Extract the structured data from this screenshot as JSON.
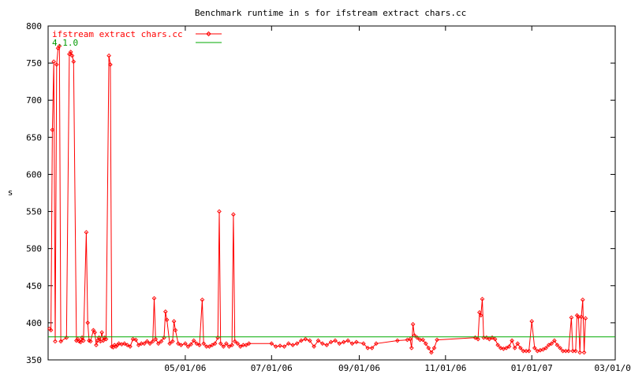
{
  "chart_data": {
    "type": "line",
    "title": "Benchmark runtime in s for ifstream extract chars.cc",
    "ylabel": "s",
    "xlabel": "",
    "ylim": [
      350,
      800
    ],
    "xlim": [
      "2006-01-24",
      "2007-03-01"
    ],
    "y_ticks": [
      350,
      400,
      450,
      500,
      550,
      600,
      650,
      700,
      750,
      800
    ],
    "x_ticks": [
      {
        "date": "2006-05-01",
        "label": "05/01/06"
      },
      {
        "date": "2006-07-01",
        "label": "07/01/06"
      },
      {
        "date": "2006-09-01",
        "label": "09/01/06"
      },
      {
        "date": "2006-11-01",
        "label": "11/01/06"
      },
      {
        "date": "2007-01-01",
        "label": "01/01/07"
      },
      {
        "date": "2007-03-01",
        "label": "03/01/07"
      }
    ],
    "legend_position": "top-left",
    "series": [
      {
        "name": "ifstream extract chars.cc",
        "color": "#ff0000",
        "marker": "diamond",
        "points": [
          [
            "2006-01-25",
            392
          ],
          [
            "2006-01-26",
            390
          ],
          [
            "2006-01-27",
            660
          ],
          [
            "2006-01-28",
            752
          ],
          [
            "2006-01-29",
            375
          ],
          [
            "2006-01-30",
            748
          ],
          [
            "2006-01-31",
            770
          ],
          [
            "2006-02-01",
            773
          ],
          [
            "2006-02-02",
            375
          ],
          [
            "2006-02-06",
            380
          ],
          [
            "2006-02-08",
            762
          ],
          [
            "2006-02-09",
            765
          ],
          [
            "2006-02-10",
            760
          ],
          [
            "2006-02-11",
            752
          ],
          [
            "2006-02-13",
            376
          ],
          [
            "2006-02-14",
            378
          ],
          [
            "2006-02-15",
            375
          ],
          [
            "2006-02-16",
            374
          ],
          [
            "2006-02-17",
            380
          ],
          [
            "2006-02-18",
            376
          ],
          [
            "2006-02-20",
            522
          ],
          [
            "2006-02-21",
            400
          ],
          [
            "2006-02-22",
            376
          ],
          [
            "2006-02-23",
            375
          ],
          [
            "2006-02-25",
            390
          ],
          [
            "2006-02-26",
            387
          ],
          [
            "2006-02-27",
            370
          ],
          [
            "2006-02-28",
            376
          ],
          [
            "2006-03-01",
            380
          ],
          [
            "2006-03-02",
            375
          ],
          [
            "2006-03-03",
            387
          ],
          [
            "2006-03-04",
            376
          ],
          [
            "2006-03-05",
            380
          ],
          [
            "2006-03-06",
            378
          ],
          [
            "2006-03-08",
            760
          ],
          [
            "2006-03-09",
            748
          ],
          [
            "2006-03-10",
            368
          ],
          [
            "2006-03-11",
            367
          ],
          [
            "2006-03-12",
            370
          ],
          [
            "2006-03-13",
            368
          ],
          [
            "2006-03-14",
            370
          ],
          [
            "2006-03-15",
            372
          ],
          [
            "2006-03-17",
            371
          ],
          [
            "2006-03-19",
            372
          ],
          [
            "2006-03-21",
            370
          ],
          [
            "2006-03-23",
            368
          ],
          [
            "2006-03-25",
            378
          ],
          [
            "2006-03-27",
            377
          ],
          [
            "2006-03-29",
            370
          ],
          [
            "2006-03-31",
            372
          ],
          [
            "2006-04-02",
            372
          ],
          [
            "2006-04-04",
            375
          ],
          [
            "2006-04-06",
            372
          ],
          [
            "2006-04-08",
            375
          ],
          [
            "2006-04-09",
            433
          ],
          [
            "2006-04-10",
            378
          ],
          [
            "2006-04-12",
            372
          ],
          [
            "2006-04-14",
            375
          ],
          [
            "2006-04-16",
            380
          ],
          [
            "2006-04-17",
            415
          ],
          [
            "2006-04-18",
            404
          ],
          [
            "2006-04-20",
            372
          ],
          [
            "2006-04-22",
            375
          ],
          [
            "2006-04-23",
            402
          ],
          [
            "2006-04-24",
            390
          ],
          [
            "2006-04-26",
            372
          ],
          [
            "2006-04-28",
            370
          ],
          [
            "2006-05-01",
            372
          ],
          [
            "2006-05-03",
            368
          ],
          [
            "2006-05-05",
            371
          ],
          [
            "2006-05-07",
            376
          ],
          [
            "2006-05-09",
            372
          ],
          [
            "2006-05-11",
            370
          ],
          [
            "2006-05-13",
            431
          ],
          [
            "2006-05-14",
            372
          ],
          [
            "2006-05-16",
            368
          ],
          [
            "2006-05-18",
            368
          ],
          [
            "2006-05-20",
            370
          ],
          [
            "2006-05-22",
            372
          ],
          [
            "2006-05-24",
            380
          ],
          [
            "2006-05-25",
            550
          ],
          [
            "2006-05-26",
            372
          ],
          [
            "2006-05-28",
            368
          ],
          [
            "2006-05-30",
            372
          ],
          [
            "2006-06-01",
            368
          ],
          [
            "2006-06-03",
            370
          ],
          [
            "2006-06-04",
            546
          ],
          [
            "2006-06-05",
            375
          ],
          [
            "2006-06-07",
            372
          ],
          [
            "2006-06-09",
            368
          ],
          [
            "2006-06-11",
            370
          ],
          [
            "2006-06-13",
            370
          ],
          [
            "2006-06-15",
            372
          ],
          [
            "2006-07-01",
            372
          ],
          [
            "2006-07-04",
            368
          ],
          [
            "2006-07-07",
            369
          ],
          [
            "2006-07-10",
            368
          ],
          [
            "2006-07-13",
            372
          ],
          [
            "2006-07-16",
            370
          ],
          [
            "2006-07-19",
            372
          ],
          [
            "2006-07-22",
            376
          ],
          [
            "2006-07-25",
            378
          ],
          [
            "2006-07-28",
            376
          ],
          [
            "2006-07-31",
            368
          ],
          [
            "2006-08-03",
            376
          ],
          [
            "2006-08-06",
            372
          ],
          [
            "2006-08-09",
            370
          ],
          [
            "2006-08-12",
            374
          ],
          [
            "2006-08-15",
            376
          ],
          [
            "2006-08-18",
            372
          ],
          [
            "2006-08-21",
            374
          ],
          [
            "2006-08-24",
            376
          ],
          [
            "2006-08-27",
            372
          ],
          [
            "2006-08-30",
            374
          ],
          [
            "2006-09-04",
            372
          ],
          [
            "2006-09-07",
            366
          ],
          [
            "2006-09-10",
            366
          ],
          [
            "2006-09-13",
            372
          ],
          [
            "2006-09-28",
            376
          ],
          [
            "2006-10-05",
            377
          ],
          [
            "2006-10-07",
            378
          ],
          [
            "2006-10-08",
            366
          ],
          [
            "2006-10-09",
            398
          ],
          [
            "2006-10-10",
            383
          ],
          [
            "2006-10-12",
            380
          ],
          [
            "2006-10-14",
            377
          ],
          [
            "2006-10-16",
            377
          ],
          [
            "2006-10-18",
            372
          ],
          [
            "2006-10-20",
            366
          ],
          [
            "2006-10-22",
            360
          ],
          [
            "2006-10-24",
            366
          ],
          [
            "2006-10-26",
            377
          ],
          [
            "2006-11-22",
            380
          ],
          [
            "2006-11-24",
            378
          ],
          [
            "2006-11-25",
            414
          ],
          [
            "2006-11-26",
            410
          ],
          [
            "2006-11-27",
            432
          ],
          [
            "2006-11-28",
            380
          ],
          [
            "2006-11-30",
            380
          ],
          [
            "2006-12-02",
            378
          ],
          [
            "2006-12-04",
            380
          ],
          [
            "2006-12-06",
            378
          ],
          [
            "2006-12-08",
            370
          ],
          [
            "2006-12-10",
            366
          ],
          [
            "2006-12-12",
            365
          ],
          [
            "2006-12-14",
            366
          ],
          [
            "2006-12-16",
            368
          ],
          [
            "2006-12-18",
            376
          ],
          [
            "2006-12-20",
            366
          ],
          [
            "2006-12-22",
            372
          ],
          [
            "2006-12-24",
            366
          ],
          [
            "2006-12-26",
            362
          ],
          [
            "2006-12-28",
            362
          ],
          [
            "2006-12-30",
            362
          ],
          [
            "2007-01-01",
            402
          ],
          [
            "2007-01-03",
            366
          ],
          [
            "2007-01-05",
            362
          ],
          [
            "2007-01-07",
            363
          ],
          [
            "2007-01-09",
            364
          ],
          [
            "2007-01-11",
            366
          ],
          [
            "2007-01-13",
            370
          ],
          [
            "2007-01-15",
            372
          ],
          [
            "2007-01-17",
            376
          ],
          [
            "2007-01-19",
            370
          ],
          [
            "2007-01-21",
            366
          ],
          [
            "2007-01-23",
            362
          ],
          [
            "2007-01-25",
            362
          ],
          [
            "2007-01-27",
            362
          ],
          [
            "2007-01-29",
            407
          ],
          [
            "2007-01-30",
            362
          ],
          [
            "2007-02-01",
            362
          ],
          [
            "2007-02-02",
            410
          ],
          [
            "2007-02-03",
            408
          ],
          [
            "2007-02-04",
            360
          ],
          [
            "2007-02-05",
            408
          ],
          [
            "2007-02-06",
            431
          ],
          [
            "2007-02-07",
            360
          ],
          [
            "2007-02-08",
            406
          ]
        ]
      },
      {
        "name": "4.1.0",
        "color": "#00aa00",
        "marker": "none",
        "points": [
          [
            "2006-01-24",
            381
          ],
          [
            "2007-03-01",
            381
          ]
        ]
      }
    ]
  }
}
